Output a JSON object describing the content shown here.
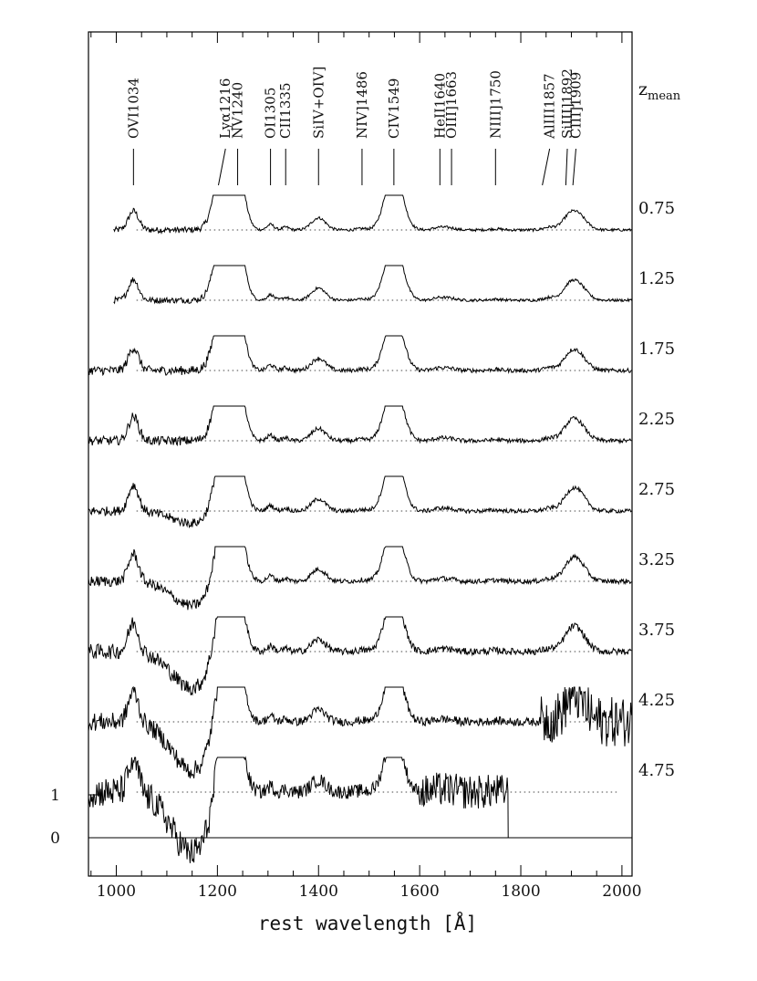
{
  "chart_data": {
    "type": "line",
    "xlabel": "rest wavelength [Å]",
    "ylabel": "",
    "xlim": [
      945,
      2020
    ],
    "x_ticks": [
      "1000",
      "1200",
      "1400",
      "1600",
      "1800",
      "2000"
    ],
    "y_ticks": [
      "0",
      "1"
    ],
    "z_header": "z",
    "z_header_sub": "mean",
    "lines": [
      {
        "label": "OVI1034",
        "wavelength": 1034
      },
      {
        "label": "Lyα1216",
        "wavelength": 1216
      },
      {
        "label": "NV1240",
        "wavelength": 1240
      },
      {
        "label": "OI1305",
        "wavelength": 1305
      },
      {
        "label": "CII1335",
        "wavelength": 1335
      },
      {
        "label": "SiIV+OIV]",
        "wavelength": 1400
      },
      {
        "label": "NIV]1486",
        "wavelength": 1486
      },
      {
        "label": "CIV1549",
        "wavelength": 1549
      },
      {
        "label": "HeII1640",
        "wavelength": 1640
      },
      {
        "label": "OIII]1663",
        "wavelength": 1663
      },
      {
        "label": "NIII]1750",
        "wavelength": 1750
      },
      {
        "label": "AlIII1857",
        "wavelength": 1857
      },
      {
        "label": "SiIII]1892",
        "wavelength": 1892
      },
      {
        "label": "CIII]1909",
        "wavelength": 1909
      }
    ],
    "series": [
      {
        "name": "0.75",
        "clip": 2.0,
        "noise": 0.04
      },
      {
        "name": "1.25",
        "clip": 2.0,
        "noise": 0.04
      },
      {
        "name": "1.75",
        "clip": 2.0,
        "noise": 0.06
      },
      {
        "name": "2.25",
        "clip": 2.0,
        "noise": 0.06
      },
      {
        "name": "2.75",
        "clip": 2.0,
        "noise": 0.06
      },
      {
        "name": "3.25",
        "clip": 2.0,
        "noise": 0.07
      },
      {
        "name": "3.75",
        "clip": 2.0,
        "noise": 0.1
      },
      {
        "name": "4.25",
        "clip": 2.0,
        "noise": 0.12
      },
      {
        "name": "4.75",
        "clip": 2.0,
        "noise": 0.2
      }
    ]
  }
}
